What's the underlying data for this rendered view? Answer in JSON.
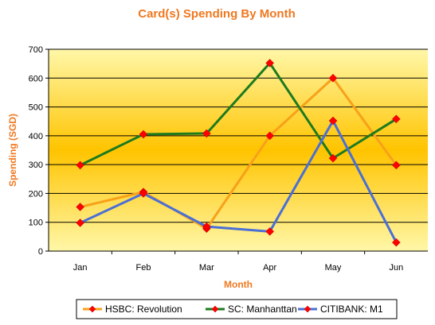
{
  "chart_data": {
    "type": "line",
    "title": "Card(s) Spending By Month",
    "xlabel": "Month",
    "ylabel": "Spending (SGD)",
    "categories": [
      "Jan",
      "Feb",
      "Mar",
      "Apr",
      "May",
      "Jun"
    ],
    "ylim": [
      0,
      700
    ],
    "yticks": [
      0,
      100,
      200,
      300,
      400,
      500,
      600,
      700
    ],
    "grid": true,
    "legend": "bottom",
    "marker_color": "#ff0000",
    "series": [
      {
        "name": "HSBC: Revolution",
        "color": "#f7a11a",
        "values": [
          153,
          205,
          78,
          400,
          600,
          298
        ]
      },
      {
        "name": "SC: Manhanttan",
        "color": "#1e7a1e",
        "values": [
          298,
          405,
          408,
          652,
          322,
          458
        ]
      },
      {
        "name": "CITIBANK: M1",
        "color": "#4a6fd6",
        "values": [
          98,
          200,
          85,
          68,
          452,
          30
        ]
      }
    ]
  }
}
